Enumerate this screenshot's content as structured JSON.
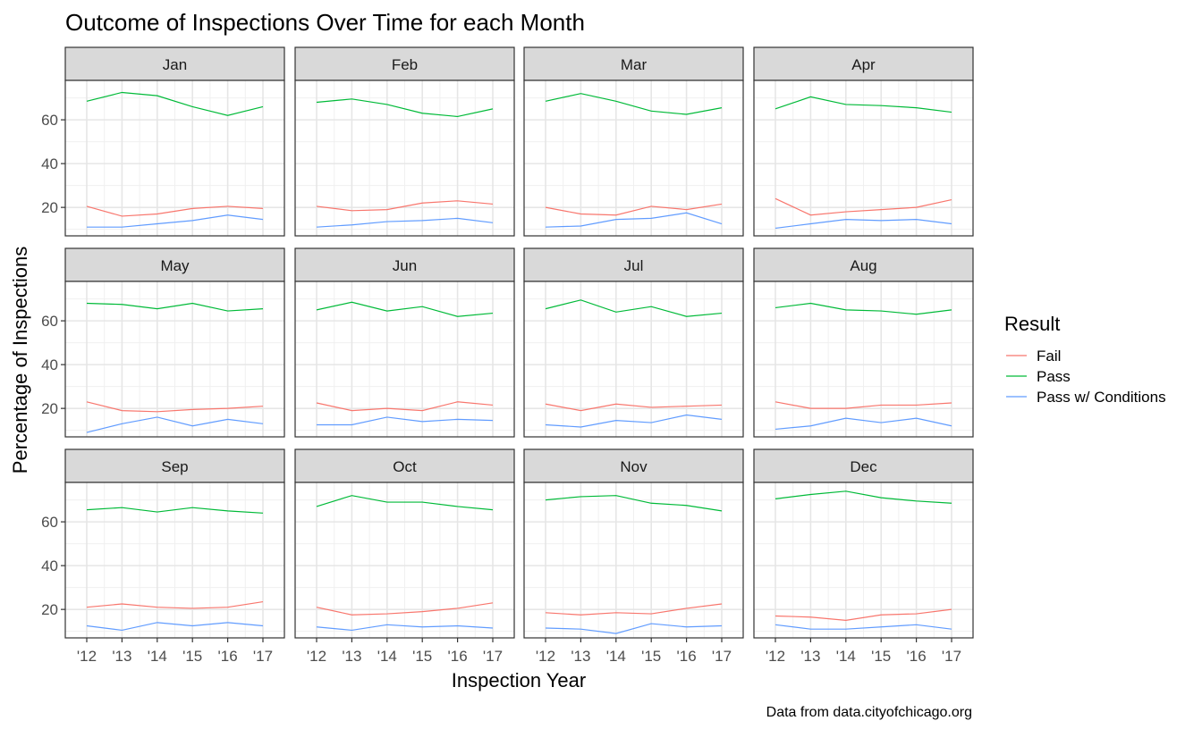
{
  "chart_data": {
    "type": "line",
    "title": "Outcome of Inspections Over Time for each Month",
    "xlabel": "Inspection Year",
    "ylabel": "Percentage of Inspections",
    "caption": "Data from data.cityofchicago.org",
    "x": [
      "'12",
      "'13",
      "'14",
      "'15",
      "'16",
      "'17"
    ],
    "ylim": [
      7,
      78
    ],
    "yticks": [
      20,
      40,
      60
    ],
    "grid": true,
    "legend": {
      "title": "Result",
      "position": "right",
      "entries": [
        "Fail",
        "Pass",
        "Pass w/ Conditions"
      ]
    },
    "colors": {
      "Fail": "#F8766D",
      "Pass": "#00BA38",
      "Pass w/ Conditions": "#619CFF"
    },
    "facets": [
      {
        "label": "Jan",
        "series": [
          {
            "name": "Fail",
            "values": [
              20.5,
              16,
              17,
              19.5,
              20.5,
              19.5
            ]
          },
          {
            "name": "Pass",
            "values": [
              68.5,
              72.5,
              71,
              66,
              62,
              66
            ]
          },
          {
            "name": "Pass w/ Conditions",
            "values": [
              11,
              11,
              12.5,
              14,
              16.5,
              14.5
            ]
          }
        ]
      },
      {
        "label": "Feb",
        "series": [
          {
            "name": "Fail",
            "values": [
              20.5,
              18.5,
              19,
              22,
              23,
              21.5
            ]
          },
          {
            "name": "Pass",
            "values": [
              68,
              69.5,
              67,
              63,
              61.5,
              65
            ]
          },
          {
            "name": "Pass w/ Conditions",
            "values": [
              11,
              12,
              13.5,
              14,
              15,
              13
            ]
          }
        ]
      },
      {
        "label": "Mar",
        "series": [
          {
            "name": "Fail",
            "values": [
              20,
              17,
              16.5,
              20.5,
              19,
              21.5
            ]
          },
          {
            "name": "Pass",
            "values": [
              68.5,
              72,
              68.5,
              64,
              62.5,
              65.5
            ]
          },
          {
            "name": "Pass w/ Conditions",
            "values": [
              11,
              11.5,
              14.5,
              15,
              17.5,
              12.5
            ]
          }
        ]
      },
      {
        "label": "Apr",
        "series": [
          {
            "name": "Fail",
            "values": [
              24,
              16.5,
              18,
              19,
              20,
              23.5
            ]
          },
          {
            "name": "Pass",
            "values": [
              65,
              70.5,
              67,
              66.5,
              65.5,
              63.5
            ]
          },
          {
            "name": "Pass w/ Conditions",
            "values": [
              10.5,
              12.5,
              14.5,
              14,
              14.5,
              12.5
            ]
          }
        ]
      },
      {
        "label": "May",
        "series": [
          {
            "name": "Fail",
            "values": [
              23,
              19,
              18.5,
              19.5,
              20,
              21
            ]
          },
          {
            "name": "Pass",
            "values": [
              68,
              67.5,
              65.5,
              68,
              64.5,
              65.5
            ]
          },
          {
            "name": "Pass w/ Conditions",
            "values": [
              9,
              13,
              16,
              12,
              15,
              13
            ]
          }
        ]
      },
      {
        "label": "Jun",
        "series": [
          {
            "name": "Fail",
            "values": [
              22.5,
              19,
              20,
              19,
              23,
              21.5
            ]
          },
          {
            "name": "Pass",
            "values": [
              65,
              68.5,
              64.5,
              66.5,
              62,
              63.5
            ]
          },
          {
            "name": "Pass w/ Conditions",
            "values": [
              12.5,
              12.5,
              16,
              14,
              15,
              14.5
            ]
          }
        ]
      },
      {
        "label": "Jul",
        "series": [
          {
            "name": "Fail",
            "values": [
              22,
              19,
              22,
              20.5,
              21,
              21.5
            ]
          },
          {
            "name": "Pass",
            "values": [
              65.5,
              69.5,
              64,
              66.5,
              62,
              63.5
            ]
          },
          {
            "name": "Pass w/ Conditions",
            "values": [
              12.5,
              11.5,
              14.5,
              13.5,
              17,
              15
            ]
          }
        ]
      },
      {
        "label": "Aug",
        "series": [
          {
            "name": "Fail",
            "values": [
              23,
              20,
              20,
              21.5,
              21.5,
              22.5
            ]
          },
          {
            "name": "Pass",
            "values": [
              66,
              68,
              65,
              64.5,
              63,
              65
            ]
          },
          {
            "name": "Pass w/ Conditions",
            "values": [
              10.5,
              12,
              15.5,
              13.5,
              15.5,
              12
            ]
          }
        ]
      },
      {
        "label": "Sep",
        "series": [
          {
            "name": "Fail",
            "values": [
              21,
              22.5,
              21,
              20.5,
              21,
              23.5
            ]
          },
          {
            "name": "Pass",
            "values": [
              65.5,
              66.5,
              64.5,
              66.5,
              65,
              64
            ]
          },
          {
            "name": "Pass w/ Conditions",
            "values": [
              12.5,
              10.5,
              14,
              12.5,
              14,
              12.5
            ]
          }
        ]
      },
      {
        "label": "Oct",
        "series": [
          {
            "name": "Fail",
            "values": [
              21,
              17.5,
              18,
              19,
              20.5,
              23
            ]
          },
          {
            "name": "Pass",
            "values": [
              67,
              72,
              69,
              69,
              67,
              65.5
            ]
          },
          {
            "name": "Pass w/ Conditions",
            "values": [
              12,
              10.5,
              13,
              12,
              12.5,
              11.5
            ]
          }
        ]
      },
      {
        "label": "Nov",
        "series": [
          {
            "name": "Fail",
            "values": [
              18.5,
              17.5,
              18.5,
              18,
              20.5,
              22.5
            ]
          },
          {
            "name": "Pass",
            "values": [
              70,
              71.5,
              72,
              68.5,
              67.5,
              65
            ]
          },
          {
            "name": "Pass w/ Conditions",
            "values": [
              11.5,
              11,
              9,
              13.5,
              12,
              12.5
            ]
          }
        ]
      },
      {
        "label": "Dec",
        "series": [
          {
            "name": "Fail",
            "values": [
              17,
              16.5,
              15,
              17.5,
              18,
              20
            ]
          },
          {
            "name": "Pass",
            "values": [
              70.5,
              72.5,
              74,
              71,
              69.5,
              68.5
            ]
          },
          {
            "name": "Pass w/ Conditions",
            "values": [
              13,
              11,
              11,
              12,
              13,
              11
            ]
          }
        ]
      }
    ]
  }
}
